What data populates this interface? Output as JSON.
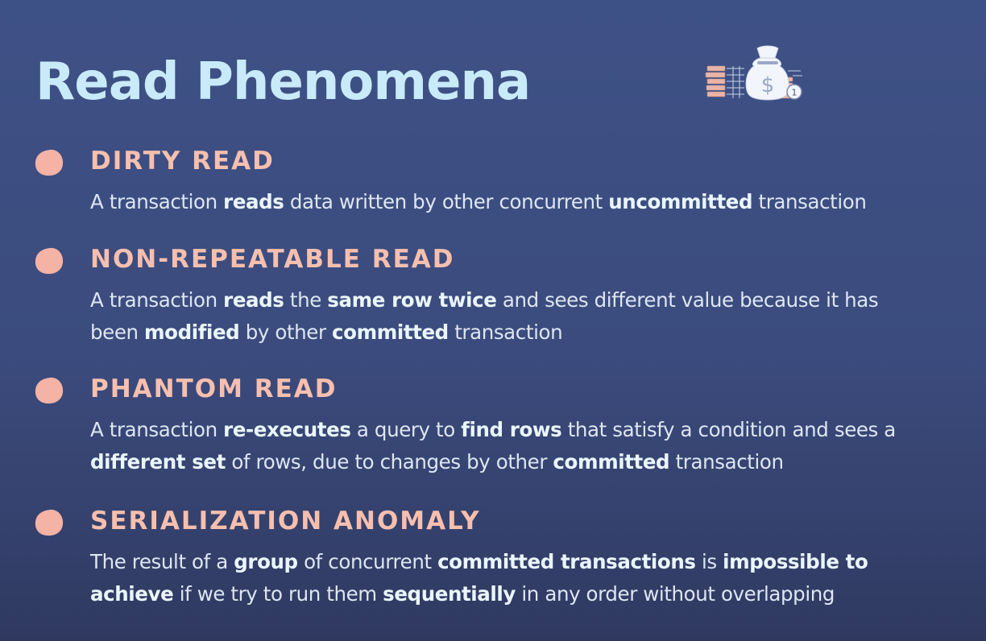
{
  "title": "Read Phenomena",
  "logo_icon": "money-bag-with-coins-icon",
  "colors": {
    "title": "#c9eaf8",
    "heading": "#f6bfae",
    "bullet": "#f4b3a5",
    "text": "#dde6f2",
    "bold_text": "#eaf6fd",
    "background": "#3c4d80"
  },
  "items": [
    {
      "heading": "DIRTY READ",
      "lines": [
        [
          {
            "t": "A transaction "
          },
          {
            "t": "reads",
            "b": true
          },
          {
            "t": " data written by other concurrent "
          },
          {
            "t": "uncommitted",
            "b": true
          },
          {
            "t": " transaction"
          }
        ]
      ]
    },
    {
      "heading": "NON-REPEATABLE READ",
      "lines": [
        [
          {
            "t": "A transaction "
          },
          {
            "t": "reads",
            "b": true
          },
          {
            "t": " the "
          },
          {
            "t": "same row twice",
            "b": true
          },
          {
            "t": " and sees different value because it has"
          }
        ],
        [
          {
            "t": "been "
          },
          {
            "t": "modified",
            "b": true
          },
          {
            "t": " by other "
          },
          {
            "t": "committed",
            "b": true
          },
          {
            "t": " transaction"
          }
        ]
      ]
    },
    {
      "heading": "PHANTOM READ",
      "lines": [
        [
          {
            "t": "A transaction "
          },
          {
            "t": "re-executes",
            "b": true
          },
          {
            "t": " a query to "
          },
          {
            "t": "find rows",
            "b": true
          },
          {
            "t": " that satisfy a condition and sees a"
          }
        ],
        [
          {
            "t": "different set",
            "b": true
          },
          {
            "t": " of rows, due to changes by other "
          },
          {
            "t": "committed",
            "b": true
          },
          {
            "t": " transaction"
          }
        ]
      ]
    },
    {
      "heading": "SERIALIZATION ANOMALY",
      "lines": [
        [
          {
            "t": "The result of a "
          },
          {
            "t": "group",
            "b": true
          },
          {
            "t": " of concurrent "
          },
          {
            "t": "committed transactions",
            "b": true
          },
          {
            "t": " is "
          },
          {
            "t": "impossible to",
            "b": true
          }
        ],
        [
          {
            "t": "achieve",
            "b": true
          },
          {
            "t": " if we try to run them "
          },
          {
            "t": "sequentially",
            "b": true
          },
          {
            "t": " in any order without overlapping"
          }
        ]
      ]
    }
  ]
}
